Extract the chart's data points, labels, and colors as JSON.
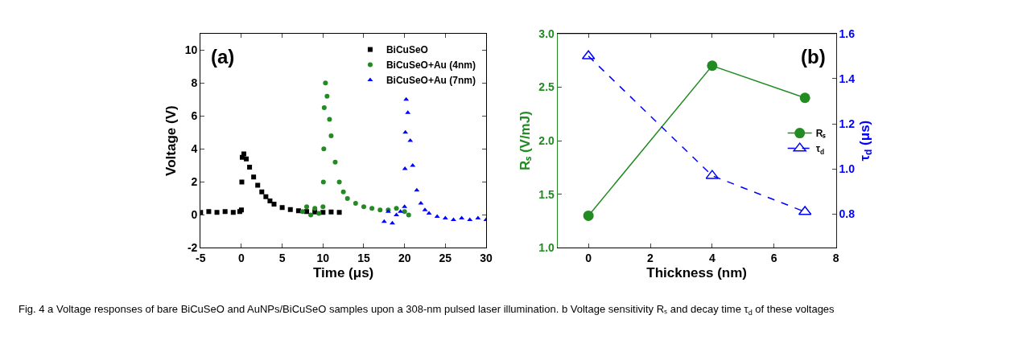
{
  "chart_data": [
    {
      "type": "scatter",
      "title": "(a)",
      "xlabel": "Time (μs)",
      "ylabel": "Voltage (V)",
      "xlim": [
        -5,
        30
      ],
      "xticks": [
        -5,
        0,
        5,
        10,
        15,
        20,
        25,
        30
      ],
      "ylim": [
        -2,
        11
      ],
      "yticks": [
        -2,
        0,
        2,
        4,
        6,
        8,
        10
      ],
      "legend": "top right",
      "annotations": [
        "Fig. 4 a Voltage responses of bare BiCuSeO and AuNPs/BiCuSeO samples upon a 308-nm pulsed laser illumination. b Voltage sensitivity Rₛ and decay time τ$_{d}$ of these voltages"
      ],
      "series": [
        {
          "name": "BiCuSeO",
          "color": "#000000",
          "marker": "square",
          "x": [
            -5,
            -4,
            -3,
            -2,
            -1,
            -0.2,
            0,
            0.05,
            0.1,
            0.3,
            0.6,
            1,
            1.5,
            2,
            2.5,
            3,
            3.5,
            4,
            5,
            6,
            7,
            8,
            9,
            10,
            11,
            12
          ],
          "values": [
            0.15,
            0.2,
            0.15,
            0.2,
            0.15,
            0.2,
            0.3,
            2.0,
            3.5,
            3.7,
            3.4,
            2.9,
            2.3,
            1.8,
            1.4,
            1.1,
            0.85,
            0.65,
            0.45,
            0.32,
            0.25,
            0.2,
            0.18,
            0.15,
            0.18,
            0.15
          ]
        },
        {
          "name": "BiCuSeO+Au (4nm)",
          "color": "#228b22",
          "marker": "circle",
          "x": [
            7.5,
            8,
            8.5,
            9,
            9.5,
            10,
            10.05,
            10.1,
            10.15,
            10.3,
            10.5,
            10.8,
            11,
            11.5,
            12,
            12.5,
            13,
            14,
            15,
            16,
            17,
            18,
            19,
            20,
            20.5
          ],
          "values": [
            0.2,
            0.5,
            0,
            0.4,
            0.1,
            0.5,
            2.0,
            4.0,
            6.5,
            8.0,
            7.2,
            5.8,
            4.8,
            3.2,
            2.0,
            1.4,
            1.0,
            0.7,
            0.5,
            0.4,
            0.3,
            0.3,
            0.4,
            0.2,
            0
          ]
        },
        {
          "name": "BiCuSeO+Au (7nm)",
          "color": "#0000ff",
          "marker": "triangle",
          "x": [
            17.5,
            18,
            18.5,
            19,
            19.5,
            20,
            20.05,
            20.1,
            20.2,
            20.4,
            20.7,
            21,
            21.5,
            22,
            22.5,
            23,
            24,
            25,
            26,
            27,
            28,
            29,
            30
          ],
          "values": [
            -0.4,
            0.2,
            -0.5,
            0,
            0.2,
            0.5,
            2.8,
            5.0,
            7.0,
            6.2,
            4.5,
            3.0,
            1.5,
            0.7,
            0.3,
            0.1,
            -0.1,
            -0.2,
            -0.3,
            -0.2,
            -0.3,
            -0.2,
            -0.3
          ]
        }
      ]
    },
    {
      "type": "line",
      "title": "(b)",
      "xlabel": "Thickness (nm)",
      "ylabel": "Rₛ (V/mJ)",
      "y2label": "τ$_{d}$ (μs)",
      "x": [
        0,
        4,
        7
      ],
      "xlim": [
        -1,
        8
      ],
      "xticks": [
        0,
        2,
        4,
        6,
        8
      ],
      "ylim": [
        1.0,
        3.0
      ],
      "yticks": [
        {
          "value": 1,
          "label": "1.0"
        },
        1.5,
        {
          "value": 2,
          "label": "2.0"
        },
        2.5,
        {
          "value": 3,
          "label": "3.0"
        }
      ],
      "y2lim": [
        0.65,
        1.6
      ],
      "y2ticks": [
        0.8,
        {
          "value": 1,
          "label": "1.0"
        },
        1.2,
        1.4,
        1.6
      ],
      "legend": "right",
      "series": [
        {
          "name": "Rₛ",
          "color": "#228b22",
          "marker": "circle",
          "line_style": "solid",
          "values": [
            1.3,
            2.7,
            2.4
          ]
        },
        {
          "name": "τ$_{d}$",
          "color": "#0000ff",
          "marker": "triangle",
          "line_style": "dashed",
          "axis": "y2",
          "values": [
            1.5,
            0.97,
            0.81
          ]
        }
      ]
    }
  ]
}
